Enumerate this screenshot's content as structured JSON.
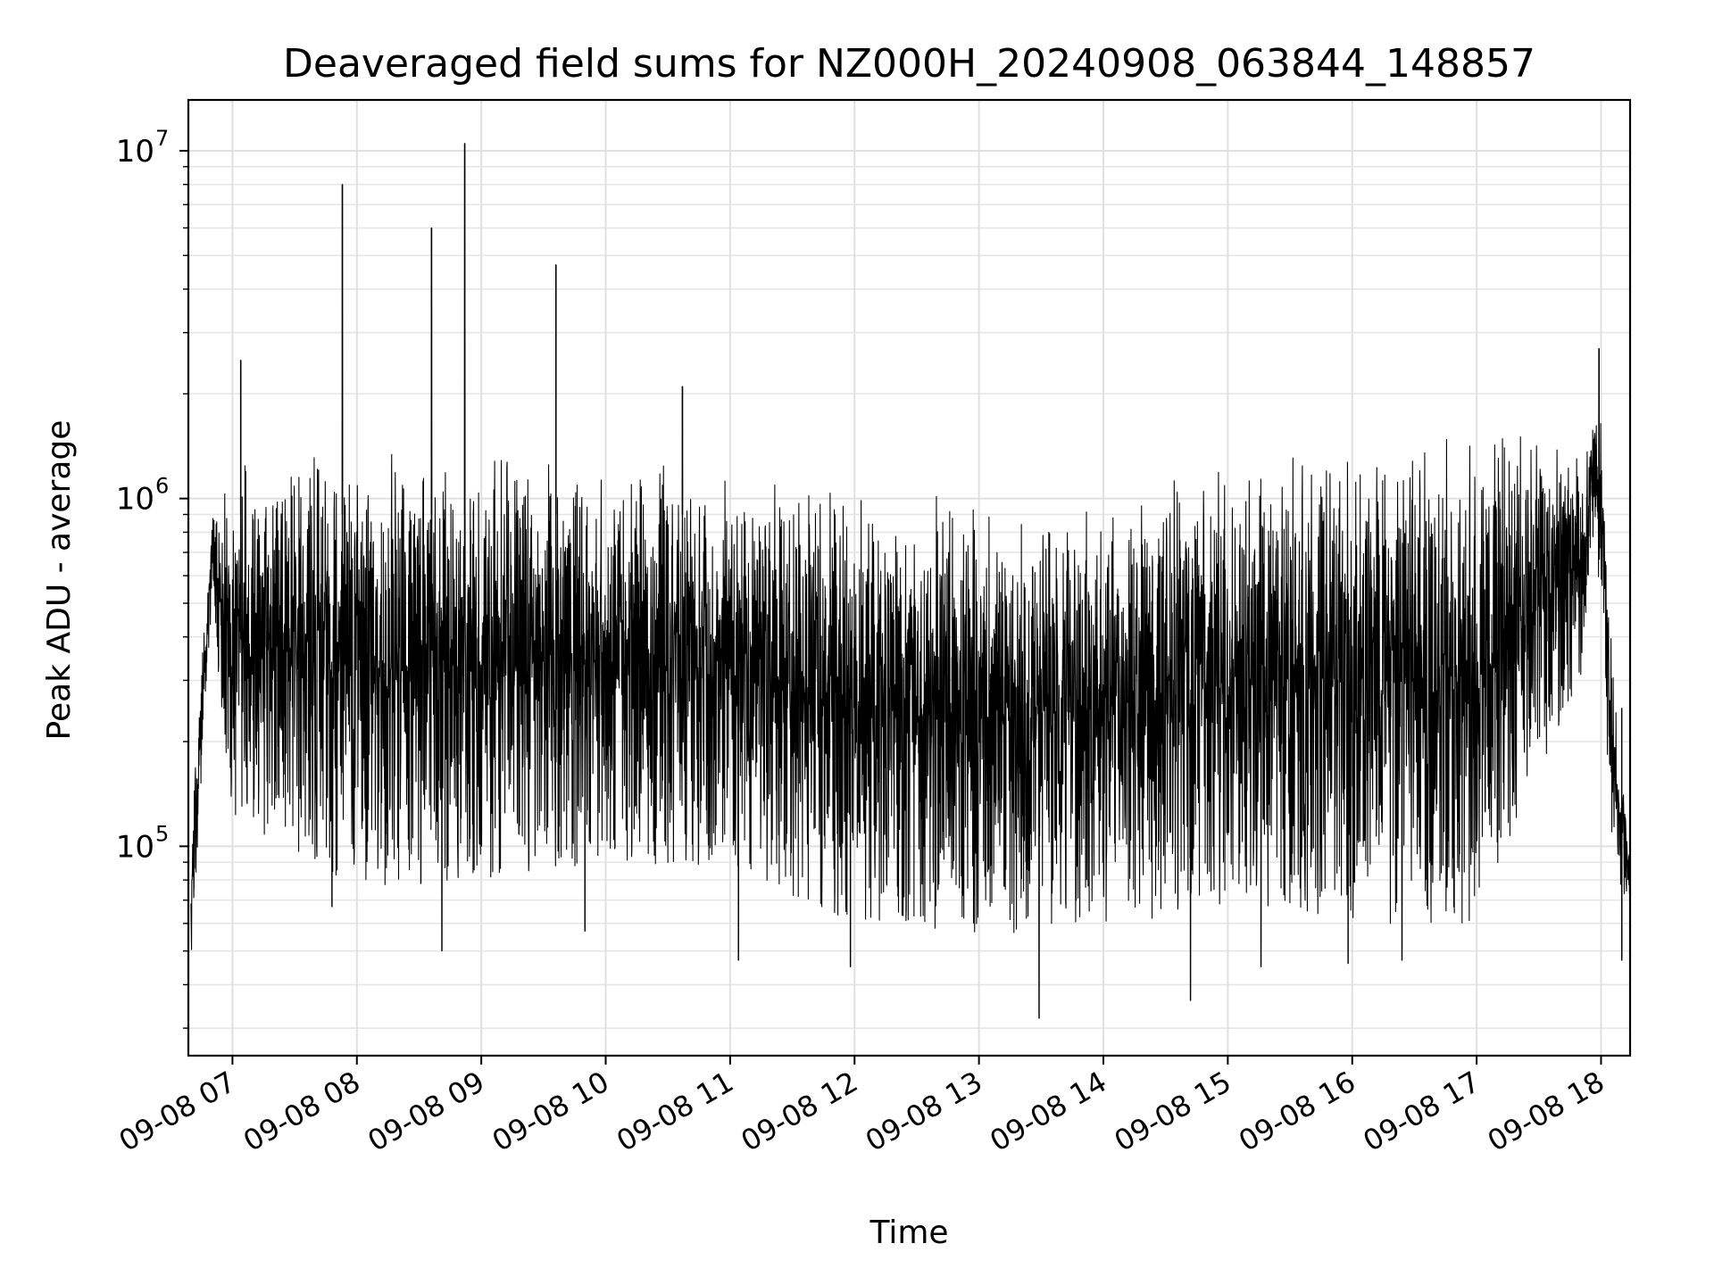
{
  "chart_data": {
    "type": "line",
    "title": "Deaveraged field sums for NZ000H_20240908_063844_148857",
    "xlabel": "Time",
    "ylabel": "Peak ADU - average",
    "yscale": "log",
    "ylim": [
      25000,
      14000000
    ],
    "xlim": [
      "2024-09-08 06:38:44",
      "2024-09-08 18:14:00"
    ],
    "grid": true,
    "line_color": "#000000",
    "x_ticks": [
      {
        "value": "2024-09-08 07:00",
        "label": "09-08 07"
      },
      {
        "value": "2024-09-08 08:00",
        "label": "09-08 08"
      },
      {
        "value": "2024-09-08 09:00",
        "label": "09-08 09"
      },
      {
        "value": "2024-09-08 10:00",
        "label": "09-08 10"
      },
      {
        "value": "2024-09-08 11:00",
        "label": "09-08 11"
      },
      {
        "value": "2024-09-08 12:00",
        "label": "09-08 12"
      },
      {
        "value": "2024-09-08 13:00",
        "label": "09-08 13"
      },
      {
        "value": "2024-09-08 14:00",
        "label": "09-08 14"
      },
      {
        "value": "2024-09-08 15:00",
        "label": "09-08 15"
      },
      {
        "value": "2024-09-08 16:00",
        "label": "09-08 16"
      },
      {
        "value": "2024-09-08 17:00",
        "label": "09-08 17"
      },
      {
        "value": "2024-09-08 18:00",
        "label": "09-08 18"
      }
    ],
    "y_ticks": [
      {
        "value": 100000,
        "base": "10",
        "exp": "5"
      },
      {
        "value": 1000000,
        "base": "10",
        "exp": "6"
      },
      {
        "value": 10000000,
        "base": "10",
        "exp": "7"
      }
    ],
    "series": [
      {
        "band_upper": [
          {
            "x": "2024-09-08 06:40",
            "y": 120000
          },
          {
            "x": "2024-09-08 06:50",
            "y": 900000
          },
          {
            "x": "2024-09-08 07:00",
            "y": 1300000
          },
          {
            "x": "2024-09-08 08:00",
            "y": 1450000
          },
          {
            "x": "2024-09-08 09:00",
            "y": 1400000
          },
          {
            "x": "2024-09-08 10:00",
            "y": 1350000
          },
          {
            "x": "2024-09-08 11:00",
            "y": 1150000
          },
          {
            "x": "2024-09-08 12:00",
            "y": 1050000
          },
          {
            "x": "2024-09-08 13:00",
            "y": 1000000
          },
          {
            "x": "2024-09-08 14:00",
            "y": 1050000
          },
          {
            "x": "2024-09-08 15:00",
            "y": 1400000
          },
          {
            "x": "2024-09-08 16:00",
            "y": 1550000
          },
          {
            "x": "2024-09-08 17:00",
            "y": 1600000
          },
          {
            "x": "2024-09-08 17:50",
            "y": 1500000
          },
          {
            "x": "2024-09-08 18:00",
            "y": 2000000
          },
          {
            "x": "2024-09-08 18:05",
            "y": 400000
          },
          {
            "x": "2024-09-08 18:14",
            "y": 90000
          }
        ],
        "band_lower": [
          {
            "x": "2024-09-08 06:40",
            "y": 45000
          },
          {
            "x": "2024-09-08 06:50",
            "y": 500000
          },
          {
            "x": "2024-09-08 07:00",
            "y": 120000
          },
          {
            "x": "2024-09-08 08:00",
            "y": 75000
          },
          {
            "x": "2024-09-08 09:00",
            "y": 80000
          },
          {
            "x": "2024-09-08 10:00",
            "y": 90000
          },
          {
            "x": "2024-09-08 11:00",
            "y": 85000
          },
          {
            "x": "2024-09-08 12:00",
            "y": 60000
          },
          {
            "x": "2024-09-08 13:00",
            "y": 55000
          },
          {
            "x": "2024-09-08 14:00",
            "y": 60000
          },
          {
            "x": "2024-09-08 15:00",
            "y": 65000
          },
          {
            "x": "2024-09-08 16:00",
            "y": 60000
          },
          {
            "x": "2024-09-08 17:00",
            "y": 60000
          },
          {
            "x": "2024-09-08 17:50",
            "y": 300000
          },
          {
            "x": "2024-09-08 18:00",
            "y": 600000
          },
          {
            "x": "2024-09-08 18:05",
            "y": 80000
          },
          {
            "x": "2024-09-08 18:14",
            "y": 70000
          }
        ],
        "spikes": [
          {
            "x": "2024-09-08 07:04",
            "y": 2500000
          },
          {
            "x": "2024-09-08 07:53",
            "y": 8000000
          },
          {
            "x": "2024-09-08 08:36",
            "y": 6000000
          },
          {
            "x": "2024-09-08 08:52",
            "y": 10500000
          },
          {
            "x": "2024-09-08 09:36",
            "y": 4700000
          },
          {
            "x": "2024-09-08 10:37",
            "y": 2100000
          },
          {
            "x": "2024-09-08 17:59",
            "y": 2700000
          }
        ],
        "dips": [
          {
            "x": "2024-09-08 07:48",
            "y": 67000
          },
          {
            "x": "2024-09-08 08:41",
            "y": 50000
          },
          {
            "x": "2024-09-08 09:50",
            "y": 57000
          },
          {
            "x": "2024-09-08 11:04",
            "y": 47000
          },
          {
            "x": "2024-09-08 11:58",
            "y": 45000
          },
          {
            "x": "2024-09-08 13:29",
            "y": 32000
          },
          {
            "x": "2024-09-08 14:42",
            "y": 36000
          },
          {
            "x": "2024-09-08 15:16",
            "y": 45000
          },
          {
            "x": "2024-09-08 15:58",
            "y": 46000
          },
          {
            "x": "2024-09-08 16:24",
            "y": 47000
          },
          {
            "x": "2024-09-08 18:10",
            "y": 47000
          }
        ]
      }
    ]
  }
}
